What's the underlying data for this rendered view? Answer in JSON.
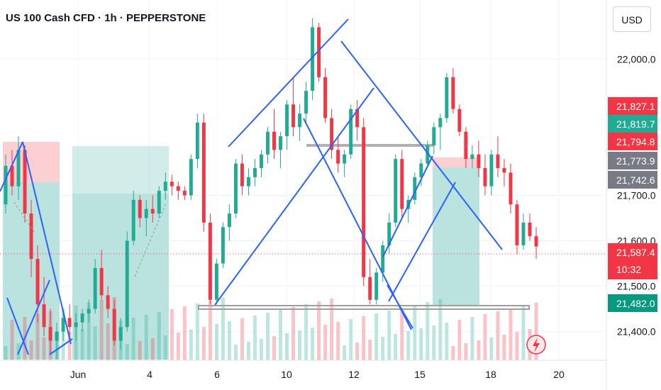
{
  "header": {
    "title": "US 100 Cash CFD · 1h · PEPPERSTONE"
  },
  "price_axis": {
    "currency": "USD"
  },
  "colors": {
    "up": "#22ab94",
    "down": "#f23645",
    "drawing_line": "#2962ff",
    "zone_profit": "#b2dfdb",
    "zone_loss": "#fccbcd",
    "level_line": "#9e9e9e"
  },
  "badges": [
    {
      "label": "21,827.1",
      "color": "#f23645"
    },
    {
      "label": "21,819.7",
      "color": "#22ab94"
    },
    {
      "label": "21,794.8",
      "color": "#f23645"
    },
    {
      "label": "21,773.9",
      "color": "#787b86"
    },
    {
      "label": "21,742.6",
      "color": "#787b86"
    },
    {
      "label": "21,587.4",
      "sub": "10:32",
      "color": "#f23645"
    },
    {
      "label": "21,482.0",
      "color": "#089981"
    }
  ],
  "chart_data": {
    "type": "candlestick",
    "symbol": "US 100 Cash CFD",
    "interval": "1h",
    "source": "PEPPERSTONE",
    "currency": "USD",
    "y_ticks": [
      "22,000.0",
      "21,700.0",
      "21,600.0",
      "21,500.0",
      "21,400.0"
    ],
    "y_tick_values": [
      22000,
      21700,
      21600,
      21500,
      21400
    ],
    "x_ticks": [
      "Jun",
      "4",
      "6",
      "10",
      "12",
      "15",
      "18",
      "20"
    ],
    "ylim": [
      21337,
      22130
    ],
    "last_price": 21587.4,
    "countdown": "10:32",
    "ohlc": [
      [
        21680,
        21790,
        21660,
        21765
      ],
      [
        21765,
        21800,
        21700,
        21720
      ],
      [
        21720,
        21830,
        21690,
        21800
      ],
      [
        21800,
        21810,
        21640,
        21660
      ],
      [
        21660,
        21690,
        21520,
        21560
      ],
      [
        21560,
        21590,
        21420,
        21460
      ],
      [
        21460,
        21520,
        21390,
        21410
      ],
      [
        21410,
        21450,
        21350,
        21380
      ],
      [
        21380,
        21420,
        21340,
        21400
      ],
      [
        21400,
        21450,
        21380,
        21430
      ],
      [
        21430,
        21460,
        21390,
        21410
      ],
      [
        21410,
        21440,
        21380,
        21420
      ],
      [
        21420,
        21450,
        21400,
        21440
      ],
      [
        21440,
        21470,
        21420,
        21450
      ],
      [
        21450,
        21560,
        21440,
        21540
      ],
      [
        21540,
        21580,
        21470,
        21480
      ],
      [
        21480,
        21500,
        21430,
        21450
      ],
      [
        21450,
        21470,
        21370,
        21380
      ],
      [
        21380,
        21430,
        21360,
        21410
      ],
      [
        21410,
        21620,
        21400,
        21600
      ],
      [
        21600,
        21710,
        21590,
        21690
      ],
      [
        21690,
        21700,
        21630,
        21650
      ],
      [
        21650,
        21690,
        21610,
        21670
      ],
      [
        21670,
        21700,
        21640,
        21660
      ],
      [
        21660,
        21720,
        21650,
        21710
      ],
      [
        21710,
        21750,
        21690,
        21730
      ],
      [
        21730,
        21745,
        21700,
        21720
      ],
      [
        21720,
        21730,
        21690,
        21710
      ],
      [
        21710,
        21720,
        21690,
        21700
      ],
      [
        21700,
        21790,
        21690,
        21780
      ],
      [
        21780,
        21880,
        21760,
        21860
      ],
      [
        21860,
        21880,
        21620,
        21640
      ],
      [
        21640,
        21660,
        21460,
        21470
      ],
      [
        21470,
        21560,
        21460,
        21550
      ],
      [
        21550,
        21640,
        21540,
        21630
      ],
      [
        21630,
        21680,
        21600,
        21660
      ],
      [
        21660,
        21780,
        21650,
        21770
      ],
      [
        21770,
        21790,
        21700,
        21720
      ],
      [
        21720,
        21760,
        21700,
        21740
      ],
      [
        21740,
        21780,
        21720,
        21760
      ],
      [
        21760,
        21800,
        21740,
        21790
      ],
      [
        21790,
        21850,
        21770,
        21840
      ],
      [
        21840,
        21890,
        21780,
        21800
      ],
      [
        21800,
        21840,
        21760,
        21830
      ],
      [
        21830,
        21910,
        21800,
        21900
      ],
      [
        21900,
        21960,
        21830,
        21850
      ],
      [
        21850,
        21900,
        21820,
        21880
      ],
      [
        21880,
        21950,
        21860,
        21930
      ],
      [
        21930,
        22090,
        21910,
        22070
      ],
      [
        22070,
        22080,
        21950,
        21960
      ],
      [
        21960,
        21980,
        21860,
        21870
      ],
      [
        21870,
        21890,
        21780,
        21800
      ],
      [
        21800,
        21830,
        21750,
        21770
      ],
      [
        21770,
        21800,
        21740,
        21790
      ],
      [
        21790,
        21900,
        21780,
        21890
      ],
      [
        21890,
        21910,
        21820,
        21850
      ],
      [
        21850,
        21870,
        21500,
        21520
      ],
      [
        21520,
        21560,
        21460,
        21470
      ],
      [
        21470,
        21540,
        21460,
        21530
      ],
      [
        21530,
        21600,
        21510,
        21590
      ],
      [
        21590,
        21660,
        21570,
        21640
      ],
      [
        21640,
        21790,
        21630,
        21780
      ],
      [
        21780,
        21800,
        21650,
        21670
      ],
      [
        21670,
        21700,
        21640,
        21690
      ],
      [
        21690,
        21750,
        21680,
        21740
      ],
      [
        21740,
        21780,
        21720,
        21770
      ],
      [
        21770,
        21820,
        21760,
        21810
      ],
      [
        21810,
        21860,
        21790,
        21850
      ],
      [
        21850,
        21880,
        21800,
        21870
      ],
      [
        21870,
        21970,
        21860,
        21960
      ],
      [
        21960,
        21980,
        21880,
        21890
      ],
      [
        21890,
        21900,
        21830,
        21840
      ],
      [
        21840,
        21850,
        21760,
        21780
      ],
      [
        21780,
        21810,
        21760,
        21790
      ],
      [
        21790,
        21820,
        21740,
        21760
      ],
      [
        21760,
        21790,
        21700,
        21720
      ],
      [
        21720,
        21800,
        21700,
        21790
      ],
      [
        21790,
        21830,
        21740,
        21760
      ],
      [
        21760,
        21780,
        21720,
        21750
      ],
      [
        21750,
        21770,
        21660,
        21680
      ],
      [
        21680,
        21690,
        21570,
        21590
      ],
      [
        21590,
        21660,
        21580,
        21640
      ],
      [
        21640,
        21660,
        21600,
        21610
      ],
      [
        21610,
        21630,
        21560,
        21587.4
      ]
    ]
  }
}
